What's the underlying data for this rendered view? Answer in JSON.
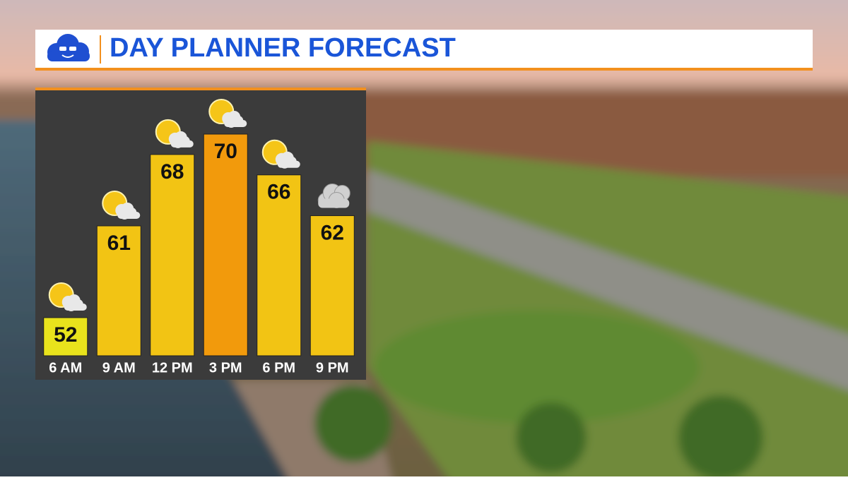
{
  "chart_data": {
    "type": "bar",
    "title": "DAY PLANNER FORECAST",
    "categories": [
      "6 AM",
      "9 AM",
      "12 PM",
      "3 PM",
      "6 PM",
      "9 PM"
    ],
    "values": [
      52,
      61,
      68,
      70,
      66,
      62
    ],
    "colors": [
      "#e9e31c",
      "#f2c414",
      "#f2c414",
      "#f29a0c",
      "#f2c414",
      "#f2c414"
    ],
    "icons": [
      "partly-sunny",
      "partly-sunny",
      "partly-sunny",
      "partly-sunny",
      "partly-sunny",
      "cloudy"
    ]
  }
}
